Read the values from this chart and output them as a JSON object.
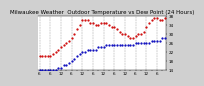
{
  "title": "Milwaukee Weather  Outdoor Temperature vs Dew Point (24 Hours)",
  "bg_color": "#d0d0d0",
  "plot_bg_color": "#ffffff",
  "grid_color": "#a0a0a0",
  "temp_color": "#cc0000",
  "dew_color": "#0000bb",
  "ylim": [
    14,
    38
  ],
  "yticks": [
    14,
    18,
    22,
    26,
    30,
    34,
    38
  ],
  "ytick_labels": [
    "14",
    "18",
    "22",
    "26",
    "30",
    "34",
    "38"
  ],
  "num_points": 48,
  "temp_values": [
    20,
    20,
    20,
    20,
    20,
    21,
    22,
    23,
    24,
    25,
    26,
    27,
    28,
    30,
    32,
    34,
    36,
    36,
    36,
    35,
    35,
    34,
    34,
    35,
    35,
    35,
    34,
    33,
    33,
    32,
    31,
    30,
    30,
    29,
    28,
    28,
    29,
    30,
    30,
    31,
    33,
    35,
    36,
    37,
    37,
    36,
    36,
    37
  ],
  "dew_values": [
    14,
    14,
    14,
    14,
    14,
    14,
    14,
    15,
    15,
    16,
    16,
    17,
    18,
    19,
    20,
    21,
    22,
    22,
    23,
    23,
    23,
    23,
    24,
    24,
    24,
    25,
    25,
    25,
    25,
    25,
    25,
    25,
    25,
    25,
    25,
    25,
    26,
    26,
    26,
    26,
    26,
    26,
    27,
    27,
    27,
    27,
    28,
    28
  ],
  "xtick_positions": [
    0,
    2,
    4,
    6,
    8,
    10,
    12,
    14,
    16,
    18,
    20,
    22,
    24,
    26,
    28,
    30,
    32,
    34,
    36,
    38,
    40,
    42,
    44,
    46
  ],
  "xtick_labels": [
    "6",
    "",
    "6",
    "",
    "12",
    "",
    "6",
    "",
    "12",
    "",
    "6",
    "",
    "12",
    "",
    "6",
    "",
    "12",
    "",
    "6",
    "",
    "12",
    "",
    "6",
    ""
  ],
  "vgrid_positions": [
    0,
    4,
    8,
    12,
    16,
    20,
    24,
    28,
    32,
    36,
    40,
    44
  ],
  "title_fontsize": 4.0,
  "tick_fontsize": 3.0,
  "marker_size": 1.2,
  "linewidth": 0.3
}
